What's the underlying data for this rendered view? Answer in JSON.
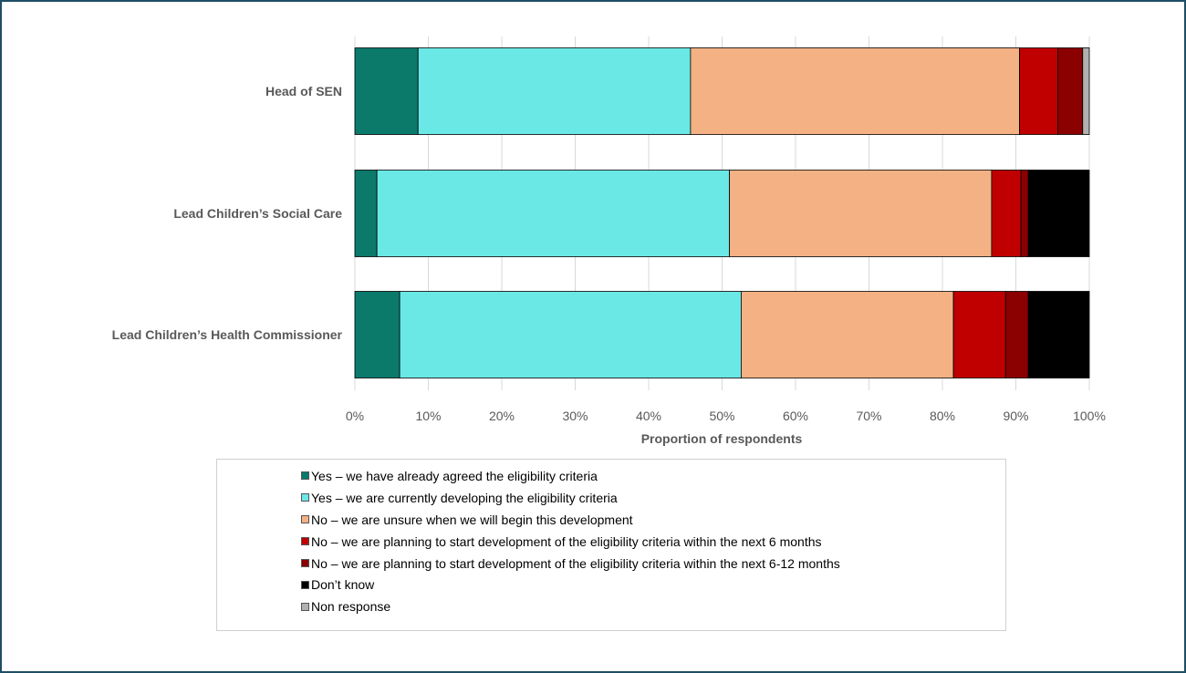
{
  "chart_data": {
    "type": "bar",
    "orientation": "horizontal",
    "stacked": "percent",
    "categories": [
      "Head of SEN",
      "Lead Children’s Social Care",
      "Lead Children’s Health Commissioner"
    ],
    "series": [
      {
        "name": "Yes – we have already agreed the eligibility criteria",
        "color": "#0b7a6b",
        "values": [
          8.6,
          3.0,
          6.1
        ]
      },
      {
        "name": "Yes – we are currently developing the eligibility criteria",
        "color": "#6ae8e6",
        "values": [
          37.1,
          48.0,
          46.5
        ]
      },
      {
        "name": "No – we are unsure when we will begin this development",
        "color": "#f4b183",
        "values": [
          44.8,
          35.7,
          28.9
        ]
      },
      {
        "name": "No – we are planning to start development of the eligibility criteria within the next 6 months",
        "color": "#c00000",
        "values": [
          5.2,
          4.0,
          7.1
        ]
      },
      {
        "name": "No – we are planning to start development of the eligibility criteria within the next 6-12 months",
        "color": "#8b0000",
        "values": [
          3.4,
          1.0,
          3.1
        ]
      },
      {
        "name": "Don’t know",
        "color": "#000000",
        "values": [
          0.0,
          8.3,
          8.3
        ]
      },
      {
        "name": "Non response",
        "color": "#b0b0b0",
        "values": [
          0.9,
          0.0,
          0.0
        ]
      }
    ],
    "xlim": [
      0,
      100
    ],
    "xticks": [
      "0%",
      "10%",
      "20%",
      "30%",
      "40%",
      "50%",
      "60%",
      "70%",
      "80%",
      "90%",
      "100%"
    ],
    "xlabel": "Proportion of respondents",
    "ylabel": "",
    "title": "",
    "grid": true,
    "legend_position": "bottom"
  }
}
